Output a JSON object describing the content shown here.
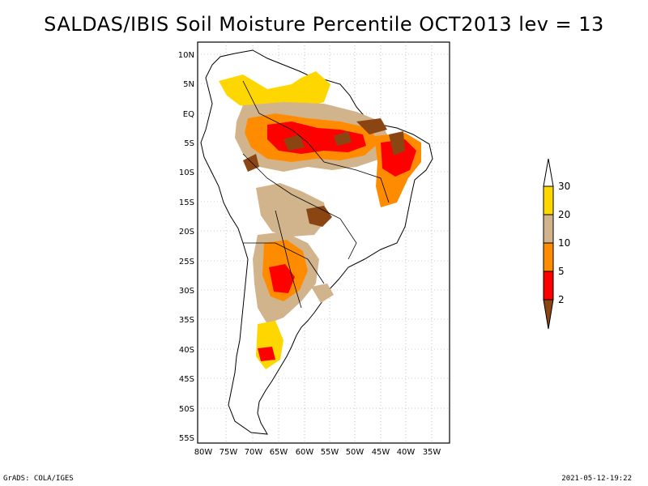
{
  "title": "SALDAS/IBIS Soil Moisture Percentile OCT2013 lev = 13",
  "axes": {
    "lat_labels": [
      "10N",
      "5N",
      "EQ",
      "5S",
      "10S",
      "15S",
      "20S",
      "25S",
      "30S",
      "35S",
      "40S",
      "45S",
      "50S",
      "55S"
    ],
    "lon_labels": [
      "80W",
      "75W",
      "70W",
      "65W",
      "60W",
      "55W",
      "50W",
      "45W",
      "40W",
      "35W"
    ]
  },
  "colorbar": {
    "levels": [
      "2",
      "5",
      "10",
      "20",
      "30"
    ],
    "colors": [
      "#8b4513",
      "#ff0000",
      "#ff8c00",
      "#d2b48c",
      "#ffd700",
      "#ffffff"
    ]
  },
  "footer": {
    "left": "GrADS: COLA/IGES",
    "right": "2021-05-12-19:22"
  },
  "map_data": {
    "region": "South America",
    "variable": "Soil Moisture Percentile",
    "categories": [
      {
        "range": "<2",
        "color": "#8b4513"
      },
      {
        "range": "2-5",
        "color": "#ff0000"
      },
      {
        "range": "5-10",
        "color": "#ff8c00"
      },
      {
        "range": "10-20",
        "color": "#d2b48c"
      },
      {
        "range": "20-30",
        "color": "#ffd700"
      },
      {
        "range": ">30",
        "color": "#ffffff"
      }
    ]
  }
}
